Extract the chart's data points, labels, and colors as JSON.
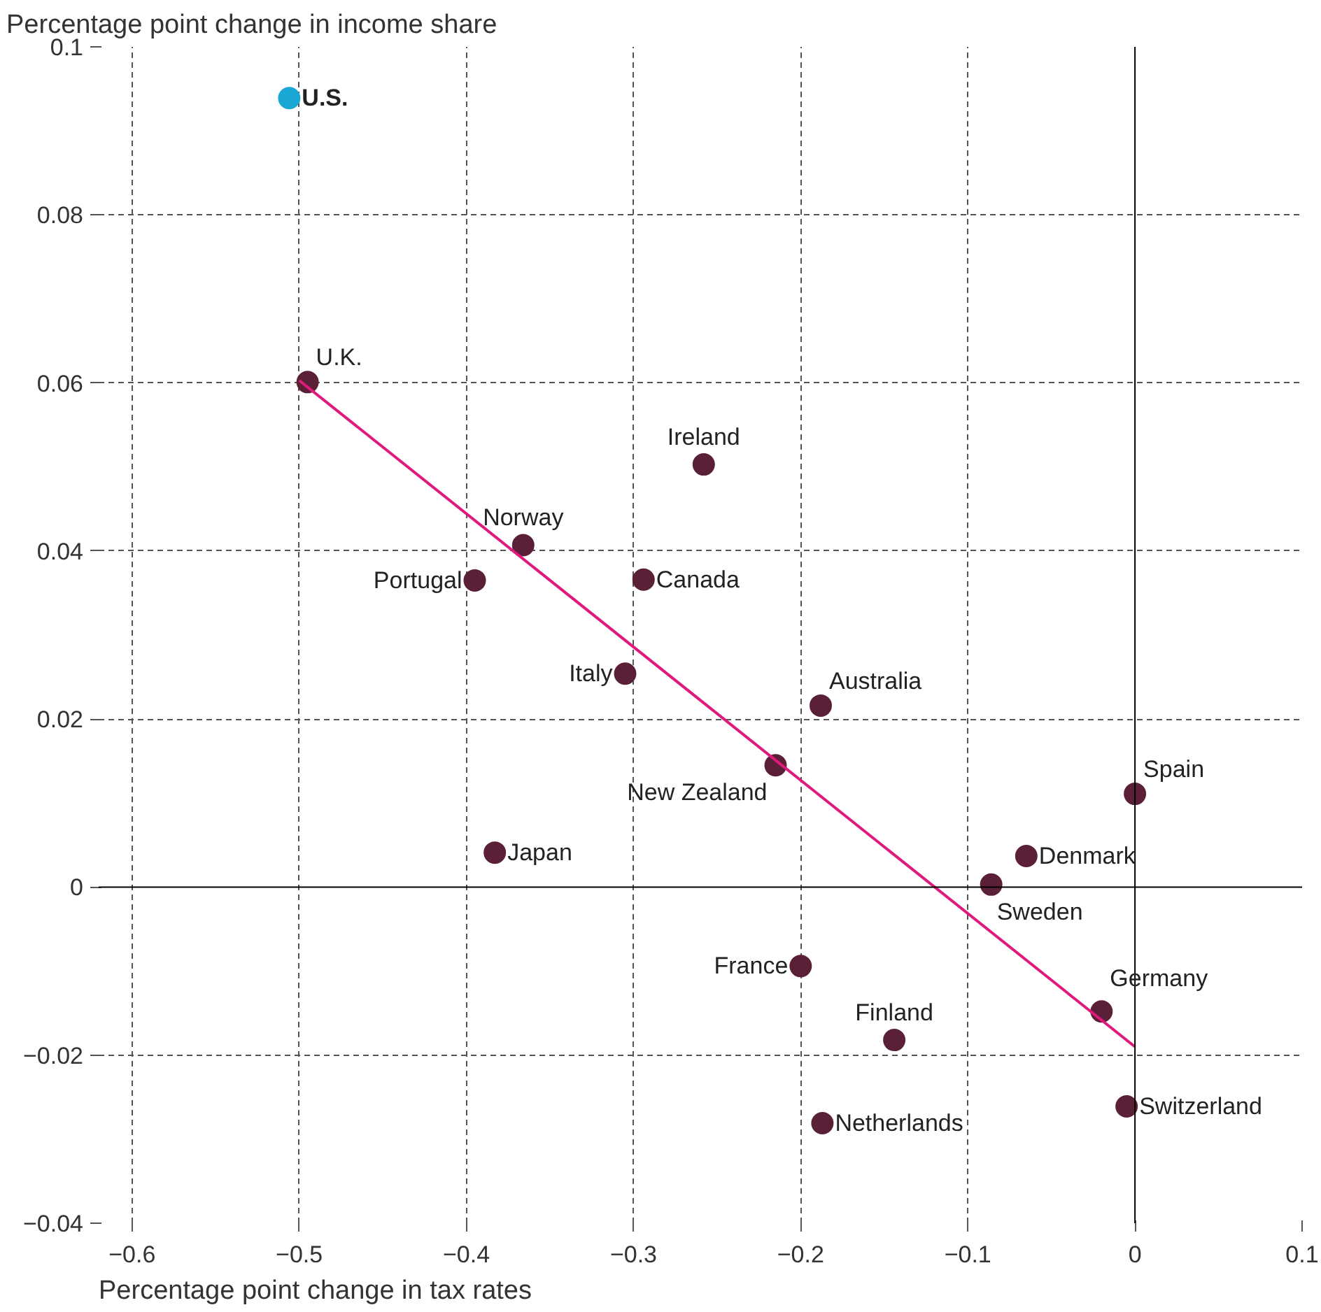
{
  "chart_data": {
    "type": "scatter",
    "xlabel": "Percentage point change in tax rates",
    "ylabel": "Percentage point change in income share",
    "xlim": [
      -0.62,
      0.1
    ],
    "ylim": [
      -0.04,
      0.1
    ],
    "xticks": [
      -0.6,
      -0.5,
      -0.4,
      -0.3,
      -0.2,
      -0.1,
      0,
      0.1
    ],
    "yticks": [
      -0.04,
      -0.02,
      0,
      0.02,
      0.04,
      0.06,
      0.08,
      0.1
    ],
    "grid": true,
    "marker": "circle",
    "series": [
      {
        "color": "#1aa7d4",
        "x": [
          -0.506
        ],
        "values": [
          0.0939
        ]
      },
      {
        "color": "#5a2038",
        "x": [
          -0.495,
          -0.258,
          -0.366,
          -0.395,
          -0.294,
          -0.305,
          -0.188,
          -0.215,
          -0.383,
          0.0,
          -0.065,
          -0.086,
          -0.2,
          -0.02,
          -0.144,
          -0.187,
          -0.005
        ],
        "values": [
          0.0601,
          0.0503,
          0.0407,
          0.0365,
          0.0366,
          0.0254,
          0.0216,
          0.0145,
          0.0041,
          0.0111,
          0.0037,
          0.0003,
          -0.0094,
          -0.0148,
          -0.0182,
          -0.0281,
          -0.0261
        ]
      },
      {
        "type": "line",
        "marker": "none",
        "color": "#e0197d",
        "x": [
          -0.5,
          0.0
        ],
        "values": [
          0.0603,
          -0.019
        ]
      }
    ],
    "annotations": [
      {
        "text": "U.S.",
        "x": -0.506,
        "y": 0.0939
      },
      {
        "text": "U.K.",
        "x": -0.495,
        "y": 0.0601
      },
      {
        "text": "Ireland",
        "x": -0.258,
        "y": 0.0503
      },
      {
        "text": "Norway",
        "x": -0.366,
        "y": 0.0407
      },
      {
        "text": "Portugal",
        "x": -0.395,
        "y": 0.0365
      },
      {
        "text": "Canada",
        "x": -0.294,
        "y": 0.0366
      },
      {
        "text": "Italy",
        "x": -0.305,
        "y": 0.0254
      },
      {
        "text": "Australia",
        "x": -0.188,
        "y": 0.0216
      },
      {
        "text": "New Zealand",
        "x": -0.215,
        "y": 0.0145
      },
      {
        "text": "Japan",
        "x": -0.383,
        "y": 0.0041
      },
      {
        "text": "Spain",
        "x": 0.0,
        "y": 0.0111
      },
      {
        "text": "Denmark",
        "x": -0.065,
        "y": 0.0037
      },
      {
        "text": "Sweden",
        "x": -0.086,
        "y": 0.0003
      },
      {
        "text": "France",
        "x": -0.2,
        "y": -0.0094
      },
      {
        "text": "Germany",
        "x": -0.02,
        "y": -0.0148
      },
      {
        "text": "Finland",
        "x": -0.144,
        "y": -0.0182
      },
      {
        "text": "Netherlands",
        "x": -0.187,
        "y": -0.0281
      },
      {
        "text": "Switzerland",
        "x": -0.005,
        "y": -0.0261
      }
    ]
  }
}
